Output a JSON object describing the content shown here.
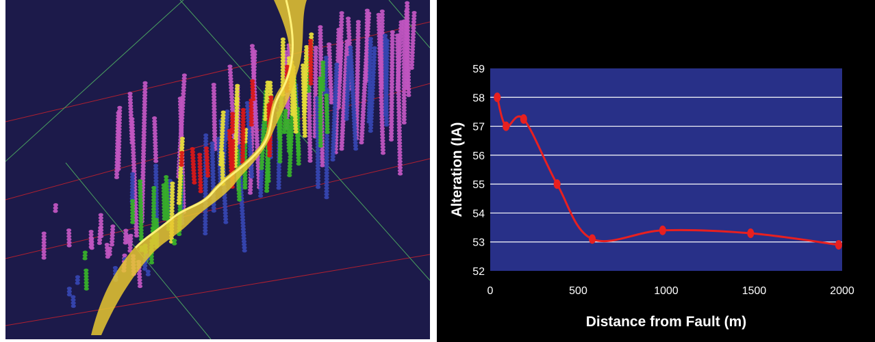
{
  "scene": {
    "colors": {
      "background": "#1c1a4a",
      "fault_surface": "#e8c830",
      "class_red": "#d81818",
      "class_yellow": "#e6dc3a",
      "class_green": "#38b02a",
      "class_blue": "#3646b0",
      "class_magenta": "#c055c0",
      "grid_red": "#b02030",
      "grid_green": "#4aa060"
    }
  },
  "chart_data": {
    "type": "line",
    "title": "",
    "xlabel": "Distance from Fault (m)",
    "ylabel": "Alteration (IA)",
    "xlim": [
      0,
      2000
    ],
    "ylim": [
      52,
      59
    ],
    "x_ticks": [
      "0",
      "500",
      "1000",
      "1500",
      "2000"
    ],
    "y_ticks": [
      "52",
      "53",
      "54",
      "55",
      "56",
      "57",
      "58",
      "59"
    ],
    "grid": "horizontal",
    "smooth": true,
    "series": [
      {
        "x": [
          40,
          90,
          190,
          380,
          580,
          980,
          1480,
          1980
        ],
        "values": [
          58.0,
          57.0,
          57.25,
          55.0,
          53.1,
          53.4,
          53.3,
          52.9
        ],
        "color": "#e82020"
      }
    ],
    "plot_background": "#283088",
    "outer_background": "#000000",
    "grid_color": "#ffffff",
    "text_color": "#ffffff"
  }
}
